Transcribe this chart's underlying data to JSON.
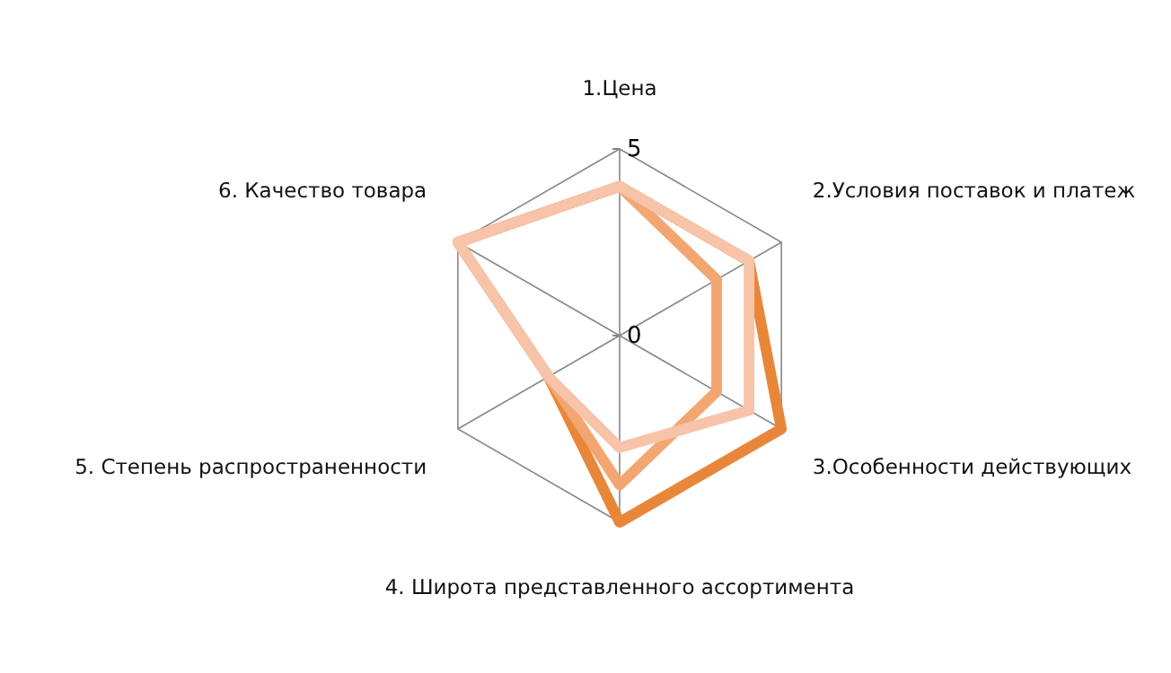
{
  "chart_data": {
    "type": "radar",
    "categories": [
      "1.Цена",
      "2.Условия поставок и платеж",
      "3.Особенности действующих",
      "4. Широта представленного ассортимента",
      "5. Степень распространенности",
      "6. Качество товара"
    ],
    "series": [
      {
        "color": "#e8873a",
        "values": [
          4,
          4,
          5,
          5,
          2.2,
          5
        ]
      },
      {
        "color": "#f4a672",
        "values": [
          4,
          3,
          3,
          4,
          2.2,
          5
        ]
      },
      {
        "color": "#f7c4aa",
        "values": [
          4,
          4,
          4,
          3,
          2.2,
          5
        ]
      }
    ],
    "ylim": [
      0,
      5
    ],
    "yticks": [
      0,
      5
    ],
    "grid": true,
    "line_style": "solid",
    "marker": "none"
  }
}
